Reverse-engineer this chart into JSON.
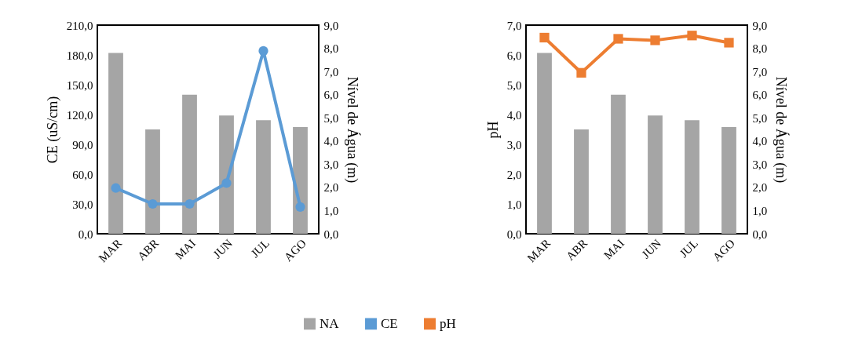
{
  "chart_data": [
    {
      "type": "bar",
      "categories": [
        "MAR",
        "ABR",
        "MAI",
        "JUN",
        "JUL",
        "AGO"
      ],
      "ylabel": "CE (uS/cm)",
      "y2label": "Nível de Água (m)",
      "ylim": [
        0,
        210
      ],
      "yticks": [
        {
          "value": 0,
          "label": "0,0"
        },
        {
          "value": 30,
          "label": "30,0"
        },
        {
          "value": 60,
          "label": "60,0"
        },
        {
          "value": 90,
          "label": "90,0"
        },
        {
          "value": 120,
          "label": "120,0"
        },
        {
          "value": 150,
          "label": "150,0"
        },
        {
          "value": 180,
          "label": "180,0"
        },
        {
          "value": 210,
          "label": "210,0"
        }
      ],
      "y2lim": [
        0,
        9
      ],
      "y2ticks": [
        {
          "value": 0,
          "label": "0,0"
        },
        {
          "value": 1,
          "label": "1,0"
        },
        {
          "value": 2,
          "label": "2,0"
        },
        {
          "value": 3,
          "label": "3,0"
        },
        {
          "value": 4,
          "label": "4,0"
        },
        {
          "value": 5,
          "label": "5,0"
        },
        {
          "value": 6,
          "label": "6,0"
        },
        {
          "value": 7,
          "label": "7,0"
        },
        {
          "value": 8,
          "label": "8,0"
        },
        {
          "value": 9,
          "label": "9,0"
        }
      ],
      "legend": "bottom",
      "series": [
        {
          "name": "NA",
          "axis": "y2",
          "color": "#a5a5a5",
          "values": [
            7.8,
            4.5,
            6.0,
            5.1,
            4.9,
            4.6
          ]
        },
        {
          "name": "CE",
          "type": "line",
          "marker": "circle",
          "color": "#5b9bd5",
          "values": [
            46,
            30,
            30,
            51,
            184,
            27
          ]
        }
      ]
    },
    {
      "type": "bar",
      "categories": [
        "MAR",
        "ABR",
        "MAI",
        "JUN",
        "JUL",
        "AGO"
      ],
      "ylabel": "pH",
      "y2label": "Nível de Água (m)",
      "ylim": [
        0,
        7
      ],
      "yticks": [
        {
          "value": 0,
          "label": "0,0"
        },
        {
          "value": 1,
          "label": "1,0"
        },
        {
          "value": 2,
          "label": "2,0"
        },
        {
          "value": 3,
          "label": "3,0"
        },
        {
          "value": 4,
          "label": "4,0"
        },
        {
          "value": 5,
          "label": "5,0"
        },
        {
          "value": 6,
          "label": "6,0"
        },
        {
          "value": 7,
          "label": "7,0"
        }
      ],
      "y2lim": [
        0,
        9
      ],
      "y2ticks": [
        {
          "value": 0,
          "label": "0,0"
        },
        {
          "value": 1,
          "label": "1,0"
        },
        {
          "value": 2,
          "label": "2,0"
        },
        {
          "value": 3,
          "label": "3,0"
        },
        {
          "value": 4,
          "label": "4,0"
        },
        {
          "value": 5,
          "label": "5,0"
        },
        {
          "value": 6,
          "label": "6,0"
        },
        {
          "value": 7,
          "label": "7,0"
        },
        {
          "value": 8,
          "label": "8,0"
        },
        {
          "value": 9,
          "label": "9,0"
        }
      ],
      "legend": "bottom",
      "series": [
        {
          "name": "NA",
          "axis": "y2",
          "color": "#a5a5a5",
          "values": [
            7.8,
            4.5,
            6.0,
            5.1,
            4.9,
            4.6
          ]
        },
        {
          "name": "pH",
          "type": "line",
          "marker": "square",
          "color": "#ed7d31",
          "values": [
            6.58,
            5.4,
            6.54,
            6.49,
            6.65,
            6.41
          ]
        }
      ]
    }
  ]
}
